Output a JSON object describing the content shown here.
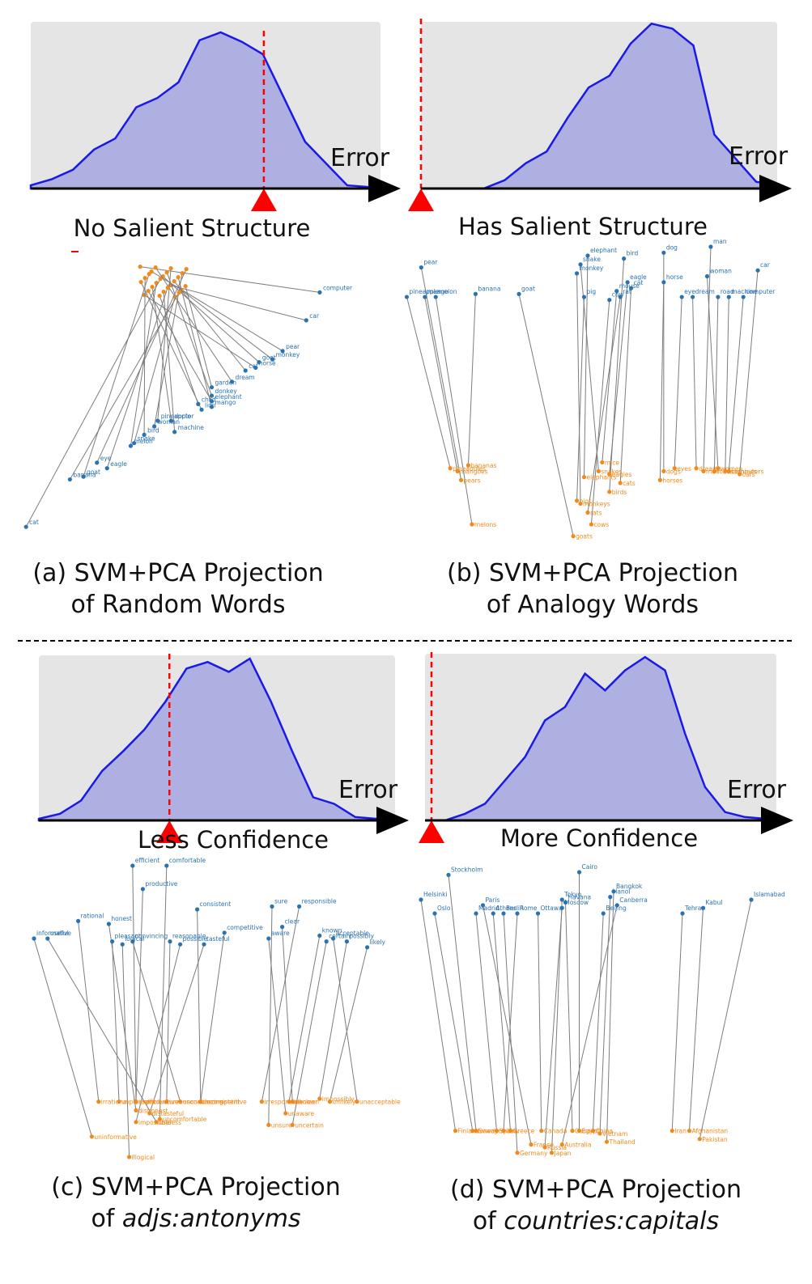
{
  "colors": {
    "panel_bg": "#e5e5e5",
    "density_fill": "#aeb0e2",
    "density_line": "#1a1ae6",
    "marker": "#ff0000",
    "source_word": "#2a72b0",
    "target_word": "#f08a1c",
    "link": "#7d7d7d"
  },
  "panels": [
    {
      "id": "a",
      "heading": "No Salient Structure",
      "axis_label": "Error",
      "caption_line1": "(a) SVM+PCA Projection",
      "caption_line2": "of Random Words",
      "caption_italic": false,
      "density": [
        0.02,
        0.06,
        0.12,
        0.25,
        0.32,
        0.52,
        0.58,
        0.68,
        0.95,
        1.0,
        0.94,
        0.86,
        0.58,
        0.3,
        0.16,
        0.02,
        0.01
      ],
      "marker_fraction": 0.7,
      "words": [
        [
          "computer",
          "",
          -1,
          -1,
          0.88,
          0.12
        ],
        [
          "car",
          "",
          -1,
          -1,
          0.84,
          0.22
        ],
        [
          "pear",
          "",
          -1,
          -1,
          0.77,
          0.33
        ],
        [
          "monkey",
          "",
          -1,
          -1,
          0.74,
          0.36
        ],
        [
          "goat",
          "",
          -1,
          -1,
          0.7,
          0.37
        ],
        [
          "horse",
          "",
          -1,
          -1,
          0.69,
          0.39
        ],
        [
          "cat",
          "",
          -1,
          -1,
          0.66,
          0.4
        ],
        [
          "dream",
          "",
          -1,
          -1,
          0.62,
          0.44
        ],
        [
          "garden",
          "",
          -1,
          -1,
          0.56,
          0.46
        ],
        [
          "donkey",
          "",
          -1,
          -1,
          0.56,
          0.49
        ],
        [
          "elephant",
          "",
          -1,
          -1,
          0.56,
          0.51
        ],
        [
          "mango",
          "",
          -1,
          -1,
          0.56,
          0.53
        ],
        [
          "child",
          "",
          -1,
          -1,
          0.52,
          0.52
        ],
        [
          "lion",
          "",
          -1,
          -1,
          0.53,
          0.54
        ],
        [
          "pineapple",
          "",
          -1,
          -1,
          0.4,
          0.58
        ],
        [
          "doctor",
          "",
          -1,
          -1,
          0.44,
          0.58
        ],
        [
          "woman",
          "",
          -1,
          -1,
          0.39,
          0.6
        ],
        [
          "machine",
          "",
          -1,
          -1,
          0.45,
          0.62
        ],
        [
          "bird",
          "",
          -1,
          -1,
          0.36,
          0.63
        ],
        [
          "snake",
          "",
          -1,
          -1,
          0.33,
          0.66
        ],
        [
          "melon",
          "",
          -1,
          -1,
          0.32,
          0.67
        ],
        [
          "eye",
          "",
          -1,
          -1,
          0.22,
          0.73
        ],
        [
          "eagle",
          "",
          -1,
          -1,
          0.25,
          0.75
        ],
        [
          "goat",
          "",
          -1,
          -1,
          0.18,
          0.78
        ],
        [
          "banana",
          "",
          -1,
          -1,
          0.14,
          0.79
        ],
        [
          "cat",
          "",
          -1,
          -1,
          0.01,
          0.96
        ]
      ]
    },
    {
      "id": "b",
      "heading": "Has Salient Structure",
      "axis_label": "Error",
      "caption_line1": "(b) SVM+PCA Projection",
      "caption_line2": "of Analogy Words",
      "caption_italic": false,
      "density": [
        0.0,
        0.0,
        0.0,
        0.0,
        0.05,
        0.15,
        0.22,
        0.42,
        0.6,
        0.67,
        0.86,
        0.98,
        0.95,
        0.85,
        0.32,
        0.18,
        0.04,
        0.02
      ],
      "marker_fraction": 0.0,
      "words": [
        [
          "pear",
          "pears",
          0.05,
          0.07,
          0.16,
          0.79
        ],
        [
          "pineapple",
          "pineapples",
          0.01,
          0.17,
          0.13,
          0.75
        ],
        [
          "mango",
          "mangoes",
          0.06,
          0.17,
          0.15,
          0.76
        ],
        [
          "melon",
          "melons",
          0.09,
          0.17,
          0.19,
          0.94
        ],
        [
          "banana",
          "bananas",
          0.2,
          0.16,
          0.18,
          0.74
        ],
        [
          "goat",
          "goats",
          0.32,
          0.16,
          0.47,
          0.98
        ],
        [
          "elephant",
          "elephants",
          0.51,
          0.03,
          0.5,
          0.78
        ],
        [
          "snake",
          "snakes",
          0.49,
          0.06,
          0.54,
          0.76
        ],
        [
          "monkey",
          "monkeys",
          0.48,
          0.09,
          0.49,
          0.87
        ],
        [
          "bird",
          "birds",
          0.61,
          0.04,
          0.57,
          0.83
        ],
        [
          "eagle",
          "eagles",
          0.62,
          0.12,
          0.57,
          0.77
        ],
        [
          "cat",
          "cats",
          0.63,
          0.14,
          0.6,
          0.8
        ],
        [
          "mouse",
          "mice",
          0.59,
          0.15,
          0.55,
          0.73
        ],
        [
          "pig",
          "pigs",
          0.5,
          0.17,
          0.48,
          0.86
        ],
        [
          "cow",
          "cows",
          0.57,
          0.18,
          0.52,
          0.94
        ],
        [
          "rat",
          "rats",
          0.6,
          0.17,
          0.51,
          0.9
        ],
        [
          "dog",
          "dogs",
          0.72,
          0.02,
          0.72,
          0.76
        ],
        [
          "horse",
          "horses",
          0.72,
          0.12,
          0.71,
          0.79
        ],
        [
          "eye",
          "eyes",
          0.77,
          0.17,
          0.75,
          0.75
        ],
        [
          "man",
          "men",
          0.85,
          0.0,
          0.83,
          0.76
        ],
        [
          "woman",
          "women",
          0.84,
          0.1,
          0.87,
          0.75
        ],
        [
          "dream",
          "dreams",
          0.8,
          0.17,
          0.81,
          0.75
        ],
        [
          "road",
          "roads",
          0.87,
          0.17,
          0.86,
          0.76
        ],
        [
          "machine",
          "machines",
          0.9,
          0.17,
          0.89,
          0.76
        ],
        [
          "computer",
          "computers",
          0.94,
          0.17,
          0.9,
          0.76
        ],
        [
          "car",
          "cars",
          0.98,
          0.08,
          0.93,
          0.77
        ]
      ]
    },
    {
      "id": "c",
      "heading": "Less Confidence",
      "axis_label": "Error",
      "caption_line1": "(c) SVM+PCA Projection",
      "caption_line2": "adjs:antonyms",
      "caption_prefix": "of ",
      "caption_italic": true,
      "density": [
        0.01,
        0.04,
        0.12,
        0.3,
        0.42,
        0.55,
        0.72,
        0.92,
        0.96,
        0.9,
        0.98,
        0.72,
        0.42,
        0.14,
        0.1,
        0.02,
        0.01
      ],
      "marker_fraction": 0.19,
      "words": [
        [
          "efficient",
          "inefficient",
          0.29,
          0.0,
          0.3,
          0.81
        ],
        [
          "comfortable",
          "uncomfortable",
          0.39,
          0.0,
          0.37,
          0.87
        ],
        [
          "productive",
          "unproductive",
          0.32,
          0.08,
          0.3,
          0.81
        ],
        [
          "consistent",
          "inconsistent",
          0.48,
          0.15,
          0.49,
          0.81
        ],
        [
          "rational",
          "irrational",
          0.13,
          0.19,
          0.19,
          0.81
        ],
        [
          "honest",
          "dishonest",
          0.22,
          0.2,
          0.3,
          0.84
        ],
        [
          "competitive",
          "uncompetitive",
          0.56,
          0.23,
          0.49,
          0.81
        ],
        [
          "reasonable",
          "unreasonable",
          0.4,
          0.26,
          0.39,
          0.81
        ],
        [
          "informative",
          "uninformative",
          0.0,
          0.25,
          0.17,
          0.93
        ],
        [
          "useful",
          "useless",
          0.04,
          0.25,
          0.36,
          0.88
        ],
        [
          "pleasant",
          "unpleasant",
          0.23,
          0.26,
          0.25,
          0.81
        ],
        [
          "convincing",
          "unconvincing",
          0.29,
          0.26,
          0.43,
          0.81
        ],
        [
          "logical",
          "illogical",
          0.26,
          0.27,
          0.28,
          1.0
        ],
        [
          "possible",
          "impossible",
          0.43,
          0.27,
          0.3,
          0.88
        ],
        [
          "tasteful",
          "distasteful",
          0.5,
          0.27,
          0.34,
          0.85
        ],
        [
          "sure",
          "unsure",
          0.7,
          0.14,
          0.69,
          0.89
        ],
        [
          "responsible",
          "irresponsible",
          0.78,
          0.14,
          0.67,
          0.81
        ],
        [
          "clear",
          "unclear",
          0.73,
          0.21,
          0.76,
          0.81
        ],
        [
          "aware",
          "unaware",
          0.69,
          0.25,
          0.74,
          0.85
        ],
        [
          "known",
          "unknown",
          0.84,
          0.24,
          0.75,
          0.81
        ],
        [
          "certain",
          "uncertain",
          0.86,
          0.26,
          0.76,
          0.89
        ],
        [
          "possibly",
          "impossibly",
          0.92,
          0.26,
          0.84,
          0.8
        ],
        [
          "likely",
          "unlikely",
          0.98,
          0.28,
          0.87,
          0.81
        ],
        [
          "acceptable",
          "unacceptable",
          0.88,
          0.25,
          0.95,
          0.81
        ]
      ]
    },
    {
      "id": "d",
      "heading": "More Confidence",
      "axis_label": "Error",
      "caption_line1": "(d) SVM+PCA Projection",
      "caption_line2": "countries:capitals",
      "caption_prefix": "of ",
      "caption_italic": true,
      "density": [
        0.0,
        0.0,
        0.04,
        0.1,
        0.24,
        0.38,
        0.6,
        0.68,
        0.88,
        0.78,
        0.9,
        0.98,
        0.9,
        0.52,
        0.2,
        0.05,
        0.02,
        0.01
      ],
      "marker_fraction": 0.0,
      "words": [
        [
          "Stockholm",
          "Sweden",
          0.08,
          0.01,
          0.16,
          0.94
        ],
        [
          "Helsinki",
          "Finland",
          0.0,
          0.1,
          0.1,
          0.94
        ],
        [
          "Oslo",
          "Norway",
          0.04,
          0.15,
          0.15,
          0.94
        ],
        [
          "Paris",
          "France",
          0.18,
          0.12,
          0.32,
          0.99
        ],
        [
          "Madrid",
          "Spain",
          0.16,
          0.15,
          0.22,
          0.94
        ],
        [
          "Athens",
          "Greece",
          0.21,
          0.15,
          0.26,
          0.94
        ],
        [
          "Berlin",
          "Germany",
          0.24,
          0.15,
          0.28,
          1.02
        ],
        [
          "Rome",
          "Italy",
          0.28,
          0.15,
          0.24,
          0.94
        ],
        [
          "Ottawa",
          "Canada",
          0.34,
          0.15,
          0.35,
          0.94
        ],
        [
          "Tokyo",
          "Japan",
          0.41,
          0.1,
          0.38,
          1.02
        ],
        [
          "Moscow",
          "Russia",
          0.41,
          0.13,
          0.36,
          1.0
        ],
        [
          "Cairo",
          "Egypt",
          0.46,
          0.0,
          0.46,
          0.94
        ],
        [
          "Havana",
          "Cuba",
          0.42,
          0.11,
          0.44,
          0.94
        ],
        [
          "Bangkok",
          "Thailand",
          0.56,
          0.07,
          0.54,
          0.98
        ],
        [
          "Hanoi",
          "Vietnam",
          0.55,
          0.09,
          0.52,
          0.95
        ],
        [
          "Canberra",
          "Australia",
          0.57,
          0.12,
          0.41,
          0.99
        ],
        [
          "Beijing",
          "China",
          0.53,
          0.15,
          0.5,
          0.94
        ],
        [
          "Tehran",
          "Iran",
          0.76,
          0.15,
          0.73,
          0.94
        ],
        [
          "Kabul",
          "Afghanistan",
          0.82,
          0.13,
          0.78,
          0.94
        ],
        [
          "Islamabad",
          "Pakistan",
          0.96,
          0.1,
          0.81,
          0.97
        ]
      ]
    }
  ]
}
